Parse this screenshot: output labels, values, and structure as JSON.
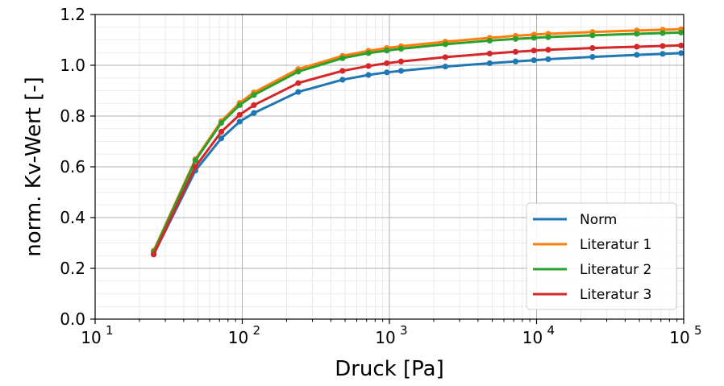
{
  "chart_data": {
    "type": "line",
    "xlabel": "Druck [Pa]",
    "ylabel": "norm. Kv-Wert [-]",
    "x_scale": "log",
    "xlim": [
      10,
      100000
    ],
    "ylim": [
      0.0,
      1.2
    ],
    "x_ticks": [
      {
        "value": 10,
        "base": "10",
        "exp": "1"
      },
      {
        "value": 100,
        "base": "10",
        "exp": "2"
      },
      {
        "value": 1000,
        "base": "10",
        "exp": "3"
      },
      {
        "value": 10000,
        "base": "10",
        "exp": "4"
      },
      {
        "value": 100000,
        "base": "10",
        "exp": "5"
      }
    ],
    "y_ticks": [
      {
        "value": 0.0,
        "label": "0.0"
      },
      {
        "value": 0.2,
        "label": "0.2"
      },
      {
        "value": 0.4,
        "label": "0.4"
      },
      {
        "value": 0.6,
        "label": "0.6"
      },
      {
        "value": 0.8,
        "label": "0.8"
      },
      {
        "value": 1.0,
        "label": "1.0"
      },
      {
        "value": 1.2,
        "label": "1.2"
      }
    ],
    "grid": true,
    "minor_grid": true,
    "legend_position": "lower-right",
    "x": [
      25,
      48,
      72,
      96,
      120,
      240,
      480,
      720,
      960,
      1200,
      2400,
      4800,
      7200,
      9600,
      12000,
      24000,
      48000,
      72000,
      96000
    ],
    "series": [
      {
        "name": "Norm",
        "color": "#1f77b4",
        "values": [
          0.255,
          0.585,
          0.712,
          0.778,
          0.812,
          0.895,
          0.943,
          0.962,
          0.972,
          0.978,
          0.995,
          1.008,
          1.015,
          1.02,
          1.024,
          1.033,
          1.041,
          1.045,
          1.048
        ]
      },
      {
        "name": "Literatur 1",
        "color": "#ff7f0e",
        "values": [
          0.27,
          0.63,
          0.78,
          0.852,
          0.893,
          0.985,
          1.037,
          1.057,
          1.068,
          1.075,
          1.093,
          1.108,
          1.116,
          1.121,
          1.124,
          1.131,
          1.137,
          1.14,
          1.142
        ]
      },
      {
        "name": "Literatur 2",
        "color": "#2ca02c",
        "values": [
          0.265,
          0.625,
          0.773,
          0.843,
          0.883,
          0.975,
          1.028,
          1.048,
          1.058,
          1.065,
          1.083,
          1.097,
          1.104,
          1.108,
          1.111,
          1.118,
          1.124,
          1.127,
          1.129
        ]
      },
      {
        "name": "Literatur 3",
        "color": "#d62728",
        "values": [
          0.255,
          0.6,
          0.738,
          0.805,
          0.843,
          0.93,
          0.978,
          0.997,
          1.008,
          1.015,
          1.032,
          1.046,
          1.053,
          1.058,
          1.061,
          1.068,
          1.073,
          1.076,
          1.078
        ]
      }
    ]
  }
}
